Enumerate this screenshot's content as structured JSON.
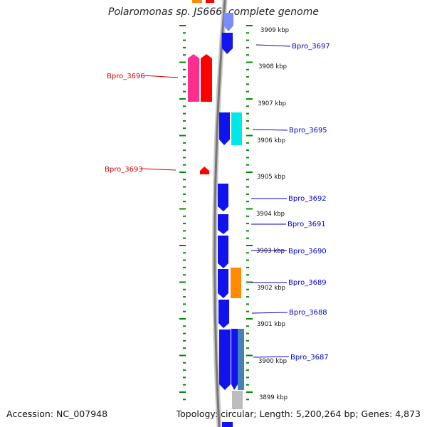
{
  "title": "Polaromonas sp. JS666, complete genome",
  "footer": {
    "accession": "Accession: NC_007948",
    "topology": "Topology: circular; Length: 5,200,264 bp; Genes: 4,873"
  },
  "colors": {
    "backbone": "#888888",
    "forward_gene": "#0000ee",
    "reverse_gene": "#ff0000",
    "pink_gene": "#ff3399",
    "cyan_gene": "#00e5e5",
    "orange_gene": "#ff8c00",
    "steel_gene": "#4682b4",
    "gray_gene": "#bbbbbb",
    "tick": "#008800",
    "forward_label": "#0000cc",
    "reverse_label": "#cc0000"
  },
  "scale_labels": [
    {
      "text": "3909 kbp",
      "kbp": 3909
    },
    {
      "text": "3908 kbp",
      "kbp": 3908
    },
    {
      "text": "3907 kbp",
      "kbp": 3907
    },
    {
      "text": "3906 kbp",
      "kbp": 3906
    },
    {
      "text": "3905 kbp",
      "kbp": 3905
    },
    {
      "text": "3904 kbp",
      "kbp": 3904
    },
    {
      "text": "3903 kbp",
      "kbp": 3903
    },
    {
      "text": "3902 kbp",
      "kbp": 3902
    },
    {
      "text": "3901 kbp",
      "kbp": 3901
    },
    {
      "text": "3900 kbp",
      "kbp": 3900
    },
    {
      "text": "3899 kbp",
      "kbp": 3899
    }
  ],
  "gene_labels": [
    {
      "name": "Bpro_3697",
      "strand": "forward"
    },
    {
      "name": "Bpro_3696",
      "strand": "reverse"
    },
    {
      "name": "Bpro_3695",
      "strand": "forward"
    },
    {
      "name": "Bpro_3693",
      "strand": "reverse"
    },
    {
      "name": "Bpro_3692",
      "strand": "forward"
    },
    {
      "name": "Bpro_3691",
      "strand": "forward"
    },
    {
      "name": "Bpro_3690",
      "strand": "forward"
    },
    {
      "name": "Bpro_3689",
      "strand": "forward"
    },
    {
      "name": "Bpro_3688",
      "strand": "forward"
    },
    {
      "name": "Bpro_3687",
      "strand": "forward"
    }
  ]
}
